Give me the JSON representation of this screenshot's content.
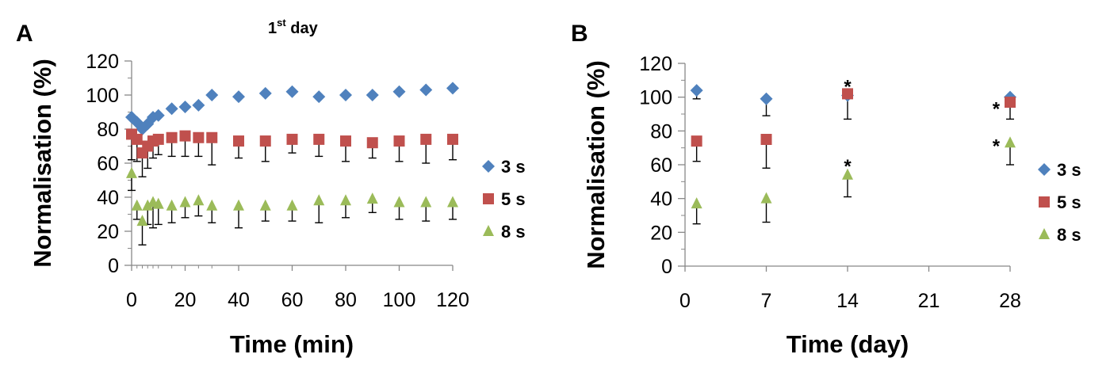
{
  "chart_data": [
    {
      "type": "scatter",
      "panel_label": "A",
      "title": "1st day",
      "title_base": "1",
      "title_sup": "st",
      "title_rest": " day",
      "xlabel": "Time (min)",
      "ylabel": "Normalisation (%)",
      "xlim": [
        0,
        120
      ],
      "ylim": [
        0,
        120
      ],
      "xticks": [
        0,
        20,
        40,
        60,
        80,
        100,
        120
      ],
      "yticks": [
        0,
        20,
        40,
        60,
        80,
        100,
        120
      ],
      "grid": false,
      "legend_position": "right",
      "series": [
        {
          "name": "3 s",
          "color": "#4F81BD",
          "marker": "diamond",
          "x": [
            0,
            2,
            4,
            6,
            8,
            10,
            15,
            20,
            25,
            30,
            40,
            50,
            60,
            70,
            80,
            90,
            100,
            110,
            120
          ],
          "y": [
            87,
            84,
            80,
            83,
            87,
            88,
            92,
            93,
            94,
            100,
            99,
            101,
            102,
            99,
            100,
            100,
            102,
            103,
            104
          ],
          "err": [
            0,
            0,
            0,
            0,
            0,
            0,
            0,
            0,
            0,
            0,
            0,
            0,
            0,
            0,
            0,
            0,
            0,
            0,
            0
          ]
        },
        {
          "name": "5 s",
          "color": "#C0504D",
          "marker": "square",
          "x": [
            0,
            2,
            4,
            6,
            8,
            10,
            15,
            20,
            25,
            30,
            40,
            50,
            60,
            70,
            80,
            90,
            100,
            110,
            120
          ],
          "y": [
            77,
            74,
            66,
            70,
            73,
            74,
            75,
            76,
            75,
            75,
            73,
            73,
            74,
            74,
            73,
            72,
            73,
            74,
            74
          ],
          "err": [
            15,
            13,
            14,
            13,
            10,
            9,
            11,
            12,
            11,
            16,
            10,
            12,
            8,
            10,
            12,
            9,
            12,
            14,
            12
          ]
        },
        {
          "name": "8 s",
          "color": "#9BBB59",
          "marker": "triangle",
          "x": [
            0,
            2,
            4,
            6,
            8,
            10,
            15,
            20,
            25,
            30,
            40,
            50,
            60,
            70,
            80,
            90,
            100,
            110,
            120
          ],
          "y": [
            54,
            35,
            26,
            35,
            37,
            36,
            35,
            37,
            38,
            35,
            35,
            35,
            35,
            38,
            38,
            39,
            37,
            37,
            37
          ],
          "err": [
            10,
            8,
            14,
            11,
            15,
            12,
            10,
            9,
            9,
            10,
            13,
            9,
            9,
            13,
            10,
            8,
            10,
            11,
            10
          ]
        }
      ]
    },
    {
      "type": "scatter",
      "panel_label": "B",
      "title": "",
      "xlabel": "Time (day)",
      "ylabel": "Normalisation (%)",
      "xlim": [
        0,
        28
      ],
      "ylim": [
        0,
        120
      ],
      "xticks": [
        0,
        7,
        14,
        21,
        28
      ],
      "yticks": [
        0,
        20,
        40,
        60,
        80,
        100,
        120
      ],
      "grid": false,
      "legend_position": "right",
      "annotations": [
        {
          "text": "*",
          "x": 14,
          "y": 108
        },
        {
          "text": "*",
          "x": 26.8,
          "y": 95
        },
        {
          "text": "*",
          "x": 26.8,
          "y": 73
        },
        {
          "text": "*",
          "x": 14,
          "y": 61
        }
      ],
      "series": [
        {
          "name": "3 s",
          "color": "#4F81BD",
          "marker": "diamond",
          "x": [
            1,
            7,
            14,
            28
          ],
          "y": [
            104,
            99,
            101,
            100
          ],
          "err": [
            5,
            10,
            14,
            0
          ]
        },
        {
          "name": "5 s",
          "color": "#C0504D",
          "marker": "square",
          "x": [
            1,
            7,
            14,
            28
          ],
          "y": [
            74,
            75,
            102,
            97
          ],
          "err": [
            12,
            17,
            0,
            10
          ]
        },
        {
          "name": "8 s",
          "color": "#9BBB59",
          "marker": "triangle",
          "x": [
            1,
            7,
            14,
            28
          ],
          "y": [
            37,
            40,
            54,
            73
          ],
          "err": [
            12,
            14,
            13,
            13
          ]
        }
      ]
    }
  ]
}
